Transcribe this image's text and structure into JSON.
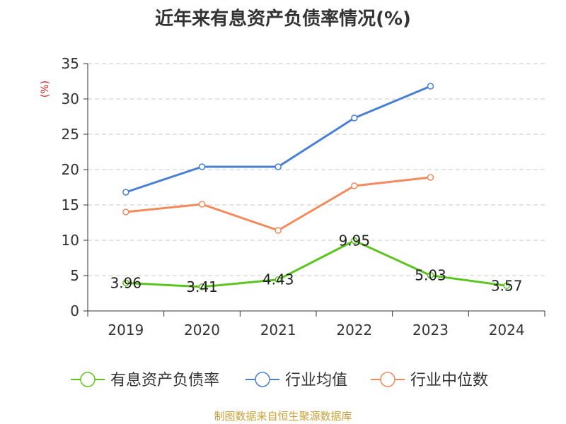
{
  "chart_data": {
    "type": "line",
    "title": "近年来有息资产负债率情况(%)",
    "ylabel": "(%)",
    "categories": [
      "2019",
      "2020",
      "2021",
      "2022",
      "2023",
      "2024"
    ],
    "ylim": [
      0,
      35
    ],
    "yticks": [
      0,
      5,
      10,
      15,
      20,
      25,
      30,
      35
    ],
    "grid": true,
    "legend_position": "bottom",
    "series": [
      {
        "name": "有息资产负债率",
        "color": "#5cc41e",
        "values": [
          3.96,
          3.41,
          4.43,
          9.95,
          5.03,
          3.57
        ],
        "labels": [
          "3.96",
          "3.41",
          "4.43",
          "9.95",
          "5.03",
          "3.57"
        ]
      },
      {
        "name": "行业均值",
        "color": "#4a7fd6",
        "values": [
          16.8,
          20.4,
          20.4,
          27.3,
          31.8,
          null
        ]
      },
      {
        "name": "行业中位数",
        "color": "#f28a5a",
        "values": [
          14.0,
          15.1,
          11.4,
          17.7,
          18.9,
          null
        ]
      }
    ]
  },
  "source": "制图数据来自恒生聚源数据库"
}
